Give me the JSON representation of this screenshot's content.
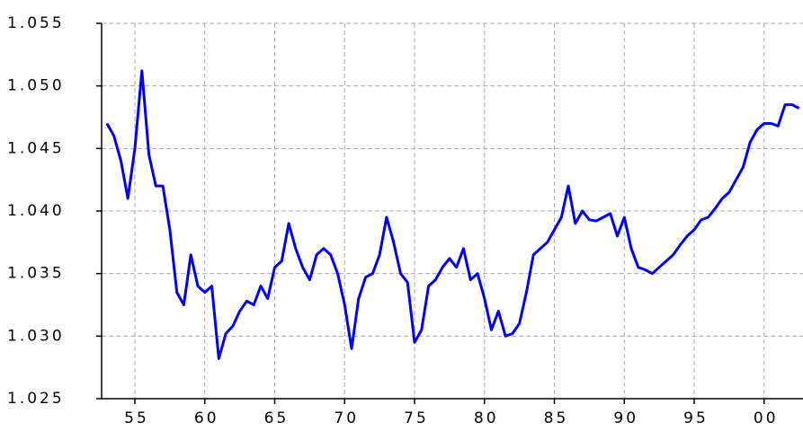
{
  "chart_data": {
    "type": "line",
    "categories": [
      null,
      null,
      null,
      null,
      "55",
      null,
      null,
      null,
      null,
      null,
      null,
      null,
      null,
      null,
      "60",
      null,
      null,
      null,
      null,
      null,
      null,
      null,
      null,
      null,
      "65",
      null,
      null,
      null,
      null,
      null,
      null,
      null,
      null,
      null,
      "70",
      null,
      null,
      null,
      null,
      null,
      null,
      null,
      null,
      null,
      "75",
      null,
      null,
      null,
      null,
      null,
      null,
      null,
      null,
      null,
      "80",
      null,
      null,
      null,
      null,
      null,
      null,
      null,
      null,
      null,
      "85",
      null,
      null,
      null,
      null,
      null,
      null,
      null,
      null,
      null,
      "90",
      null,
      null,
      null,
      null,
      null,
      null,
      null,
      null,
      null,
      "95",
      null,
      null,
      null,
      null,
      null,
      null,
      null,
      null,
      null,
      "00",
      null,
      null,
      null,
      null,
      null
    ],
    "series": [
      {
        "color": "#0000ff",
        "values": [
          1.047,
          1.046,
          1.044,
          1.041,
          1.045,
          1.0512,
          1.0445,
          1.042,
          1.042,
          1.0385,
          1.0335,
          1.0325,
          1.0365,
          1.034,
          1.0335,
          1.034,
          1.0282,
          1.0302,
          1.0308,
          1.032,
          1.0328,
          1.0325,
          1.034,
          1.033,
          1.0355,
          1.036,
          1.039,
          1.037,
          1.0355,
          1.0345,
          1.0365,
          1.037,
          1.0365,
          1.035,
          1.0325,
          1.029,
          1.033,
          1.0347,
          1.035,
          1.0365,
          1.0395,
          1.0375,
          1.035,
          1.0343,
          1.0295,
          1.0305,
          1.034,
          1.0345,
          1.0355,
          1.0362,
          1.0355,
          1.037,
          1.0345,
          1.035,
          1.033,
          1.0305,
          1.032,
          1.03,
          1.0302,
          1.031,
          1.0335,
          1.0365,
          1.037,
          1.0375,
          1.0385,
          1.0395,
          1.042,
          1.039,
          1.04,
          1.0393,
          1.0392,
          1.0395,
          1.0398,
          1.038,
          1.0395,
          1.037,
          1.0355,
          1.0353,
          1.035,
          1.0355,
          1.036,
          1.0365,
          1.0373,
          1.038,
          1.0385,
          1.0393,
          1.0395,
          1.0402,
          1.041,
          1.0415,
          1.0425,
          1.0435,
          1.0455,
          1.0465,
          1.047,
          1.047,
          1.0468,
          1.0485,
          1.0485,
          1.0482
        ]
      }
    ],
    "ylim": [
      1.025,
      1.055
    ],
    "yticks": [
      1.025,
      {
        "value": 1.03,
        "label": "1.030"
      },
      1.035,
      {
        "value": 1.04,
        "label": "1.040"
      },
      1.045,
      {
        "value": 1.05,
        "label": "1.050"
      },
      1.055
    ],
    "grid": true
  }
}
